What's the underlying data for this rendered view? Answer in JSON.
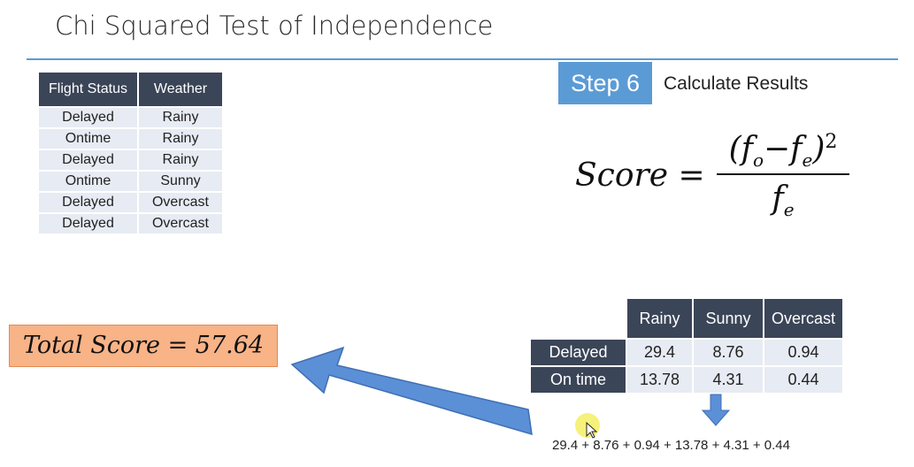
{
  "header": {
    "title": "Chi Squared Test of Independence"
  },
  "data_table": {
    "columns": [
      "Flight Status",
      "Weather"
    ],
    "rows": [
      [
        "Delayed",
        "Rainy"
      ],
      [
        "Ontime",
        "Rainy"
      ],
      [
        "Delayed",
        "Rainy"
      ],
      [
        "Ontime",
        "Sunny"
      ],
      [
        "Delayed",
        "Overcast"
      ],
      [
        "Delayed",
        "Overcast"
      ]
    ]
  },
  "step": {
    "badge": "Step 6",
    "label": "Calculate Results"
  },
  "formula": {
    "lhs": "Score =",
    "numerator": "(f",
    "sub_o": "o",
    "minus": "−f",
    "sub_e": "e",
    "close": ")",
    "power": "2",
    "denominator": "f",
    "den_sub": "e"
  },
  "total": {
    "text": "Total Score = 57.64"
  },
  "score_table": {
    "columns": [
      "Rainy",
      "Sunny",
      "Overcast"
    ],
    "rows": [
      {
        "label": "Delayed",
        "values": [
          "29.4",
          "8.76",
          "0.94"
        ]
      },
      {
        "label": "On time",
        "values": [
          "13.78",
          "4.31",
          "0.44"
        ]
      }
    ]
  },
  "sum_text": "29.4 + 8.76 + 0.94 + 13.78 + 4.31 + 0.44",
  "colors": {
    "accent": "#5b9bd5",
    "header_bg": "#3b4558",
    "cell_bg": "#e7ebf3",
    "total_bg": "#f8b387"
  }
}
